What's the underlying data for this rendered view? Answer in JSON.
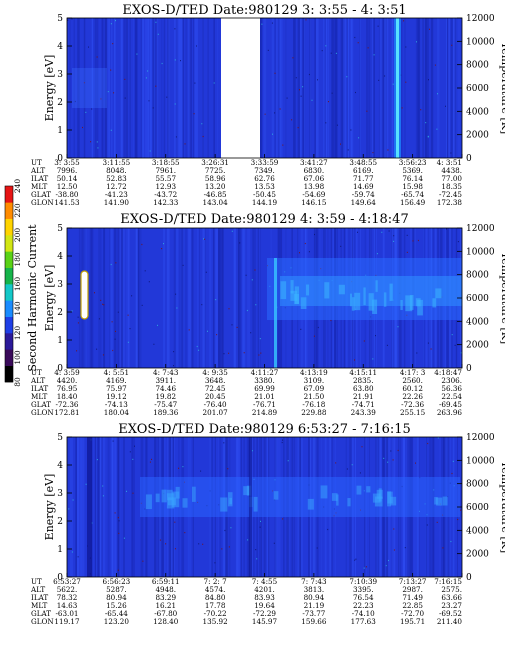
{
  "chart_data": [
    {
      "type": "heatmap",
      "title": "EXOS-D/TED   Date:980129  3: 3:55 - 4: 3:51",
      "ylabel": "Energy [eV]",
      "y2label": "Temperature [K]",
      "ylim": [
        0,
        5
      ],
      "y2lim": [
        0,
        12000
      ],
      "y_ticks": [
        "0",
        "1",
        "2",
        "3",
        "4",
        "5"
      ],
      "y2_ticks": [
        "0",
        "2000",
        "4000",
        "6000",
        "8000",
        "10000",
        "12000"
      ],
      "ephemeris": {
        "labels": [
          "UT",
          "ALT",
          "ILAT",
          "MLT",
          "GLAT",
          "GLON"
        ],
        "columns": [
          [
            "3: 3:55",
            "7996.",
            "50.14",
            "12.50",
            "-38.80",
            "141.53"
          ],
          [
            "3:11:55",
            "8048.",
            "52.83",
            "12.72",
            "-41.23",
            "141.90"
          ],
          [
            "3:18:55",
            "7961.",
            "55.57",
            "12.93",
            "-43.72",
            "142.33"
          ],
          [
            "3:26:31",
            "7725.",
            "58.96",
            "13.20",
            "-46.85",
            "143.04"
          ],
          [
            "3:33:59",
            "7349.",
            "62.76",
            "13.53",
            "-50.45",
            "144.19"
          ],
          [
            "3:41:27",
            "6830.",
            "67.06",
            "13.98",
            "-54.69",
            "146.15"
          ],
          [
            "3:48:55",
            "6169.",
            "71.77",
            "14.69",
            "-59.74",
            "149.64"
          ],
          [
            "3:56:23",
            "5369.",
            "76.14",
            "15.98",
            "-65.74",
            "156.49"
          ],
          [
            "4: 3:51",
            "4438.",
            "77.00",
            "18.35",
            "-72.45",
            "172.38"
          ]
        ]
      }
    },
    {
      "type": "heatmap",
      "title": "EXOS-D/TED   Date:980129  4: 3:59 - 4:18:47",
      "ylabel": "Energy [eV]",
      "y2label": "Temperature [K]",
      "ylim": [
        0,
        5
      ],
      "y2lim": [
        0,
        12000
      ],
      "y_ticks": [
        "0",
        "1",
        "2",
        "3",
        "4",
        "5"
      ],
      "y2_ticks": [
        "0",
        "2000",
        "4000",
        "6000",
        "8000",
        "10000",
        "12000"
      ],
      "ephemeris": {
        "labels": [
          "UT",
          "ALT",
          "ILAT",
          "MLT",
          "GLAT",
          "GLON"
        ],
        "columns": [
          [
            "4: 3:59",
            "4420.",
            "76.95",
            "18.40",
            "-72.36",
            "172.81"
          ],
          [
            "4: 5:51",
            "4169.",
            "75.97",
            "19.12",
            "-74.13",
            "180.04"
          ],
          [
            "4: 7:43",
            "3911.",
            "74.46",
            "19.82",
            "-75.47",
            "189.36"
          ],
          [
            "4: 9:35",
            "3648.",
            "72.45",
            "20.45",
            "-76.40",
            "201.07"
          ],
          [
            "4:11:27",
            "3380.",
            "69.99",
            "21.01",
            "-76.71",
            "214.89"
          ],
          [
            "4:13:19",
            "3109.",
            "67.09",
            "21.50",
            "-76.18",
            "229.88"
          ],
          [
            "4:15:11",
            "2835.",
            "63.80",
            "21.91",
            "-74.71",
            "243.39"
          ],
          [
            "4:17: 3",
            "2560.",
            "60.12",
            "22.26",
            "-72.36",
            "255.15"
          ],
          [
            "4:18:47",
            "2306.",
            "56.36",
            "22.54",
            "-69.45",
            "263.96"
          ]
        ]
      }
    },
    {
      "type": "heatmap",
      "title": "EXOS-D/TED   Date:980129  6:53:27 - 7:16:15",
      "ylabel": "Energy [eV]",
      "y2label": "Temperature [K]",
      "ylim": [
        0,
        5
      ],
      "y2lim": [
        0,
        12000
      ],
      "y_ticks": [
        "0",
        "1",
        "2",
        "3",
        "4",
        "5"
      ],
      "y2_ticks": [
        "0",
        "2000",
        "4000",
        "6000",
        "8000",
        "10000",
        "12000"
      ],
      "ephemeris": {
        "labels": [
          "UT",
          "ALT",
          "ILAT",
          "MLT",
          "GLAT",
          "GLON"
        ],
        "columns": [
          [
            "6:53:27",
            "5622.",
            "78.32",
            "14.63",
            "-63.01",
            "119.17"
          ],
          [
            "6:56:23",
            "5287.",
            "80.94",
            "15.26",
            "-65.44",
            "123.20"
          ],
          [
            "6:59:11",
            "4948.",
            "83.29",
            "16.21",
            "-67.80",
            "128.40"
          ],
          [
            "7: 2: 7",
            "4574.",
            "84.80",
            "17.78",
            "-70.22",
            "135.92"
          ],
          [
            "7: 4:55",
            "4201.",
            "83.93",
            "19.64",
            "-72.29",
            "145.97"
          ],
          [
            "7: 7:43",
            "3813.",
            "80.94",
            "21.19",
            "-73.77",
            "159.66"
          ],
          [
            "7:10:39",
            "3395.",
            "76.54",
            "22.23",
            "-74.10",
            "177.63"
          ],
          [
            "7:13:27",
            "2987.",
            "71.49",
            "22.85",
            "-72.70",
            "195.71"
          ],
          [
            "7:16:15",
            "2575.",
            "63.66",
            "23.27",
            "-69.52",
            "211.40"
          ]
        ]
      }
    }
  ],
  "colorbar": {
    "label": "Second Harmonic Current",
    "ticks": [
      "80",
      "100",
      "120",
      "140",
      "160",
      "180",
      "200",
      "220",
      "240"
    ],
    "colors": [
      "#000000",
      "#3a0a5a",
      "#2b1a9a",
      "#1f3fe6",
      "#1a8cff",
      "#14c8c8",
      "#16b44a",
      "#5ad216",
      "#d2e614",
      "#ffd400",
      "#ff8c00",
      "#e61414"
    ]
  },
  "colors": {
    "background": "#2238d8",
    "gap": "#ffffff"
  }
}
